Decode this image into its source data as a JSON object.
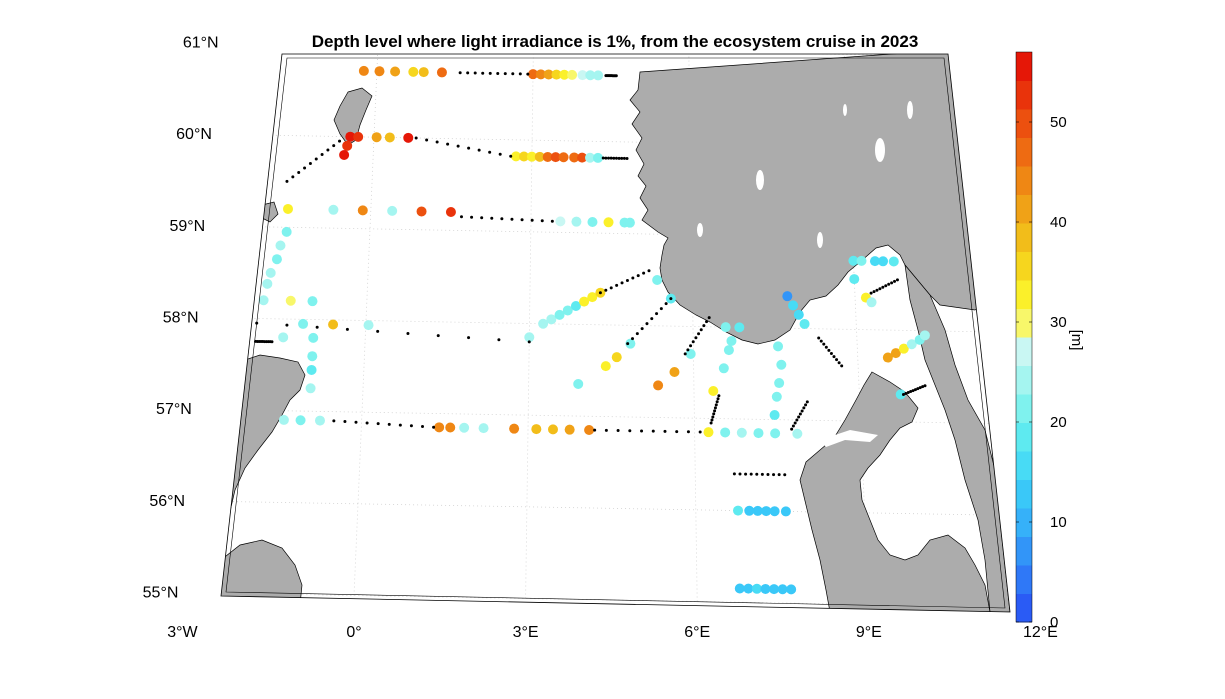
{
  "title": "Depth level where light irradiance is 1%, from the ecosystem cruise in 2023",
  "colorbar": {
    "unit": "[m]",
    "range": [
      0,
      57
    ],
    "ticks": [
      "0",
      "10",
      "20",
      "30",
      "40",
      "50"
    ],
    "tick_values": [
      0,
      10,
      20,
      30,
      40,
      50
    ],
    "colors": [
      "#2a5bf5",
      "#2f78f7",
      "#3295f8",
      "#36b1f9",
      "#3ac8f8",
      "#48dbf5",
      "#5eeaf0",
      "#7ff2ee",
      "#a5f5f0",
      "#c9f7f3",
      "#f8f76a",
      "#fbf02a",
      "#f6d61e",
      "#f2bd1a",
      "#f0a217",
      "#ef8714",
      "#ee6b12",
      "#ec500f",
      "#e9330b",
      "#e51707"
    ]
  },
  "lat_labels": [
    "61°N",
    "60°N",
    "59°N",
    "58°N",
    "57°N",
    "56°N",
    "55°N"
  ],
  "lon_labels": [
    "3°W",
    "0°",
    "3°E",
    "6°E",
    "9°E",
    "12°E"
  ],
  "colors": {
    "land": "#acacac",
    "coast_line": "#000000",
    "grid": "#d0d0d0",
    "station_dot": "#000000"
  },
  "chart_data": {
    "type": "scatter",
    "title": "Depth level where light irradiance is 1%, from the ecosystem cruise in 2023",
    "xlabel": "",
    "ylabel": "",
    "xlim": [
      -3,
      12
    ],
    "ylim": [
      55,
      61
    ],
    "color_scale": {
      "label": "[m]",
      "min": 0,
      "max": 57
    },
    "measured_stations": [
      {
        "lon": -0.25,
        "lat": 60.72,
        "depth": 44
      },
      {
        "lon": 0.05,
        "lat": 60.72,
        "depth": 43
      },
      {
        "lon": 0.35,
        "lat": 60.72,
        "depth": 42
      },
      {
        "lon": 0.7,
        "lat": 60.72,
        "depth": 37
      },
      {
        "lon": 0.9,
        "lat": 60.72,
        "depth": 39
      },
      {
        "lon": 1.25,
        "lat": 60.72,
        "depth": 46
      },
      {
        "lon": 3.0,
        "lat": 60.72,
        "depth": 48
      },
      {
        "lon": 3.15,
        "lat": 60.72,
        "depth": 43
      },
      {
        "lon": 3.3,
        "lat": 60.72,
        "depth": 40
      },
      {
        "lon": 3.45,
        "lat": 60.72,
        "depth": 36
      },
      {
        "lon": 3.6,
        "lat": 60.72,
        "depth": 33
      },
      {
        "lon": 3.75,
        "lat": 60.72,
        "depth": 31
      },
      {
        "lon": 3.95,
        "lat": 60.72,
        "depth": 26
      },
      {
        "lon": 4.1,
        "lat": 60.72,
        "depth": 24
      },
      {
        "lon": 4.25,
        "lat": 60.72,
        "depth": 23
      },
      {
        "lon": -0.45,
        "lat": 60.0,
        "depth": 55
      },
      {
        "lon": -0.5,
        "lat": 59.9,
        "depth": 54
      },
      {
        "lon": -0.55,
        "lat": 59.8,
        "depth": 55
      },
      {
        "lon": -0.3,
        "lat": 60.0,
        "depth": 53
      },
      {
        "lon": 0.05,
        "lat": 60.0,
        "depth": 42
      },
      {
        "lon": 0.3,
        "lat": 60.0,
        "depth": 38
      },
      {
        "lon": 0.65,
        "lat": 60.0,
        "depth": 56
      },
      {
        "lon": 2.7,
        "lat": 59.82,
        "depth": 33
      },
      {
        "lon": 2.85,
        "lat": 59.82,
        "depth": 35
      },
      {
        "lon": 3.0,
        "lat": 59.82,
        "depth": 34
      },
      {
        "lon": 3.15,
        "lat": 59.82,
        "depth": 38
      },
      {
        "lon": 3.3,
        "lat": 59.82,
        "depth": 47
      },
      {
        "lon": 3.45,
        "lat": 59.82,
        "depth": 49
      },
      {
        "lon": 3.6,
        "lat": 59.82,
        "depth": 48
      },
      {
        "lon": 3.8,
        "lat": 59.82,
        "depth": 46
      },
      {
        "lon": 3.95,
        "lat": 59.82,
        "depth": 50
      },
      {
        "lon": 4.1,
        "lat": 59.82,
        "depth": 24
      },
      {
        "lon": 4.25,
        "lat": 59.82,
        "depth": 22
      },
      {
        "lon": -1.55,
        "lat": 59.2,
        "depth": 32
      },
      {
        "lon": -0.7,
        "lat": 59.2,
        "depth": 24
      },
      {
        "lon": -0.15,
        "lat": 59.2,
        "depth": 44
      },
      {
        "lon": 0.4,
        "lat": 59.2,
        "depth": 23
      },
      {
        "lon": 0.95,
        "lat": 59.2,
        "depth": 51
      },
      {
        "lon": 1.5,
        "lat": 59.2,
        "depth": 52
      },
      {
        "lon": 3.55,
        "lat": 59.12,
        "depth": 26
      },
      {
        "lon": 3.85,
        "lat": 59.12,
        "depth": 23
      },
      {
        "lon": 4.15,
        "lat": 59.12,
        "depth": 22
      },
      {
        "lon": 4.45,
        "lat": 59.12,
        "depth": 33
      },
      {
        "lon": 4.75,
        "lat": 59.12,
        "depth": 20
      },
      {
        "lon": 4.85,
        "lat": 59.12,
        "depth": 21
      },
      {
        "lon": -1.55,
        "lat": 58.95,
        "depth": 22
      },
      {
        "lon": -1.65,
        "lat": 58.8,
        "depth": 23
      },
      {
        "lon": -1.7,
        "lat": 58.65,
        "depth": 22
      },
      {
        "lon": -1.8,
        "lat": 58.5,
        "depth": 24
      },
      {
        "lon": -1.85,
        "lat": 58.38,
        "depth": 25
      },
      {
        "lon": -1.9,
        "lat": 58.2,
        "depth": 24
      },
      {
        "lon": -1.4,
        "lat": 58.2,
        "depth": 31
      },
      {
        "lon": -1.0,
        "lat": 58.2,
        "depth": 22
      },
      {
        "lon": -1.15,
        "lat": 57.95,
        "depth": 22
      },
      {
        "lon": -0.6,
        "lat": 57.95,
        "depth": 38
      },
      {
        "lon": 0.05,
        "lat": 57.95,
        "depth": 23
      },
      {
        "lon": -1.5,
        "lat": 57.8,
        "depth": 23
      },
      {
        "lon": -0.95,
        "lat": 57.8,
        "depth": 22
      },
      {
        "lon": -0.95,
        "lat": 57.6,
        "depth": 22
      },
      {
        "lon": -0.95,
        "lat": 57.45,
        "depth": 18
      },
      {
        "lon": -0.95,
        "lat": 57.25,
        "depth": 24
      },
      {
        "lon": 3.0,
        "lat": 57.85,
        "depth": 25
      },
      {
        "lon": 3.25,
        "lat": 58.0,
        "depth": 25
      },
      {
        "lon": 3.4,
        "lat": 58.05,
        "depth": 24
      },
      {
        "lon": 3.55,
        "lat": 58.1,
        "depth": 22
      },
      {
        "lon": 3.7,
        "lat": 58.15,
        "depth": 20
      },
      {
        "lon": 3.85,
        "lat": 58.2,
        "depth": 19
      },
      {
        "lon": 4.0,
        "lat": 58.25,
        "depth": 33
      },
      {
        "lon": 4.15,
        "lat": 58.3,
        "depth": 34
      },
      {
        "lon": 4.3,
        "lat": 58.35,
        "depth": 35
      },
      {
        "lon": 3.9,
        "lat": 57.35,
        "depth": 22
      },
      {
        "lon": 4.4,
        "lat": 57.55,
        "depth": 32
      },
      {
        "lon": 4.6,
        "lat": 57.65,
        "depth": 36
      },
      {
        "lon": 4.85,
        "lat": 57.8,
        "depth": 22
      },
      {
        "lon": 5.35,
        "lat": 57.35,
        "depth": 43
      },
      {
        "lon": 5.65,
        "lat": 57.5,
        "depth": 42
      },
      {
        "lon": 5.95,
        "lat": 57.7,
        "depth": 21
      },
      {
        "lon": 5.35,
        "lat": 58.5,
        "depth": 22
      },
      {
        "lon": 6.35,
        "lat": 57.3,
        "depth": 33
      },
      {
        "lon": 6.55,
        "lat": 57.55,
        "depth": 21
      },
      {
        "lon": 6.65,
        "lat": 57.75,
        "depth": 20
      },
      {
        "lon": 6.7,
        "lat": 57.85,
        "depth": 21
      },
      {
        "lon": 6.85,
        "lat": 58.0,
        "depth": 19
      },
      {
        "lon": 6.6,
        "lat": 58.0,
        "depth": 21
      },
      {
        "lon": 5.6,
        "lat": 58.3,
        "depth": 19
      },
      {
        "lon": 7.55,
        "lat": 57.8,
        "depth": 21
      },
      {
        "lon": 7.6,
        "lat": 57.6,
        "depth": 20
      },
      {
        "lon": 7.55,
        "lat": 57.4,
        "depth": 21
      },
      {
        "lon": 7.5,
        "lat": 57.25,
        "depth": 21
      },
      {
        "lon": 7.45,
        "lat": 57.05,
        "depth": 18
      },
      {
        "lon": 7.75,
        "lat": 58.35,
        "depth": 6
      },
      {
        "lon": 7.85,
        "lat": 58.25,
        "depth": 15
      },
      {
        "lon": 7.95,
        "lat": 58.15,
        "depth": 17
      },
      {
        "lon": 8.05,
        "lat": 58.05,
        "depth": 18
      },
      {
        "lon": -1.4,
        "lat": 56.9,
        "depth": 23
      },
      {
        "lon": -1.1,
        "lat": 56.9,
        "depth": 21
      },
      {
        "lon": -0.75,
        "lat": 56.9,
        "depth": 24
      },
      {
        "lon": 1.4,
        "lat": 56.85,
        "depth": 45
      },
      {
        "lon": 1.6,
        "lat": 56.85,
        "depth": 44
      },
      {
        "lon": 1.85,
        "lat": 56.85,
        "depth": 24
      },
      {
        "lon": 2.2,
        "lat": 56.85,
        "depth": 25
      },
      {
        "lon": 2.75,
        "lat": 56.85,
        "depth": 45
      },
      {
        "lon": 3.15,
        "lat": 56.85,
        "depth": 39
      },
      {
        "lon": 3.45,
        "lat": 56.85,
        "depth": 38
      },
      {
        "lon": 3.75,
        "lat": 56.85,
        "depth": 40
      },
      {
        "lon": 4.1,
        "lat": 56.85,
        "depth": 44
      },
      {
        "lon": 6.25,
        "lat": 56.85,
        "depth": 33
      },
      {
        "lon": 6.55,
        "lat": 56.85,
        "depth": 21
      },
      {
        "lon": 6.85,
        "lat": 56.85,
        "depth": 23
      },
      {
        "lon": 7.15,
        "lat": 56.85,
        "depth": 22
      },
      {
        "lon": 7.45,
        "lat": 56.85,
        "depth": 21
      },
      {
        "lon": 7.85,
        "lat": 56.85,
        "depth": 24
      },
      {
        "lon": 6.75,
        "lat": 56.0,
        "depth": 19
      },
      {
        "lon": 6.95,
        "lat": 56.0,
        "depth": 13
      },
      {
        "lon": 7.1,
        "lat": 56.0,
        "depth": 12
      },
      {
        "lon": 7.25,
        "lat": 56.0,
        "depth": 12
      },
      {
        "lon": 7.4,
        "lat": 56.0,
        "depth": 13
      },
      {
        "lon": 7.6,
        "lat": 56.0,
        "depth": 12
      },
      {
        "lon": 6.75,
        "lat": 55.15,
        "depth": 13
      },
      {
        "lon": 6.9,
        "lat": 55.15,
        "depth": 14
      },
      {
        "lon": 7.05,
        "lat": 55.15,
        "depth": 15
      },
      {
        "lon": 7.2,
        "lat": 55.15,
        "depth": 14
      },
      {
        "lon": 7.35,
        "lat": 55.15,
        "depth": 14
      },
      {
        "lon": 7.5,
        "lat": 55.15,
        "depth": 13
      },
      {
        "lon": 7.65,
        "lat": 55.15,
        "depth": 12
      },
      {
        "lon": 9.0,
        "lat": 58.75,
        "depth": 19
      },
      {
        "lon": 9.15,
        "lat": 58.75,
        "depth": 21
      },
      {
        "lon": 9.4,
        "lat": 58.75,
        "depth": 16
      },
      {
        "lon": 9.55,
        "lat": 58.75,
        "depth": 17
      },
      {
        "lon": 9.75,
        "lat": 58.75,
        "depth": 18
      },
      {
        "lon": 9.0,
        "lat": 58.55,
        "depth": 18
      },
      {
        "lon": 9.2,
        "lat": 58.35,
        "depth": 33
      },
      {
        "lon": 9.3,
        "lat": 58.3,
        "depth": 23
      },
      {
        "lon": 9.55,
        "lat": 57.7,
        "depth": 41
      },
      {
        "lon": 9.7,
        "lat": 57.75,
        "depth": 40
      },
      {
        "lon": 9.85,
        "lat": 57.8,
        "depth": 32
      },
      {
        "lon": 10.0,
        "lat": 57.85,
        "depth": 24
      },
      {
        "lon": 10.15,
        "lat": 57.9,
        "depth": 22
      },
      {
        "lon": 10.25,
        "lat": 57.95,
        "depth": 23
      },
      {
        "lon": 9.75,
        "lat": 57.3,
        "depth": 18
      }
    ]
  }
}
